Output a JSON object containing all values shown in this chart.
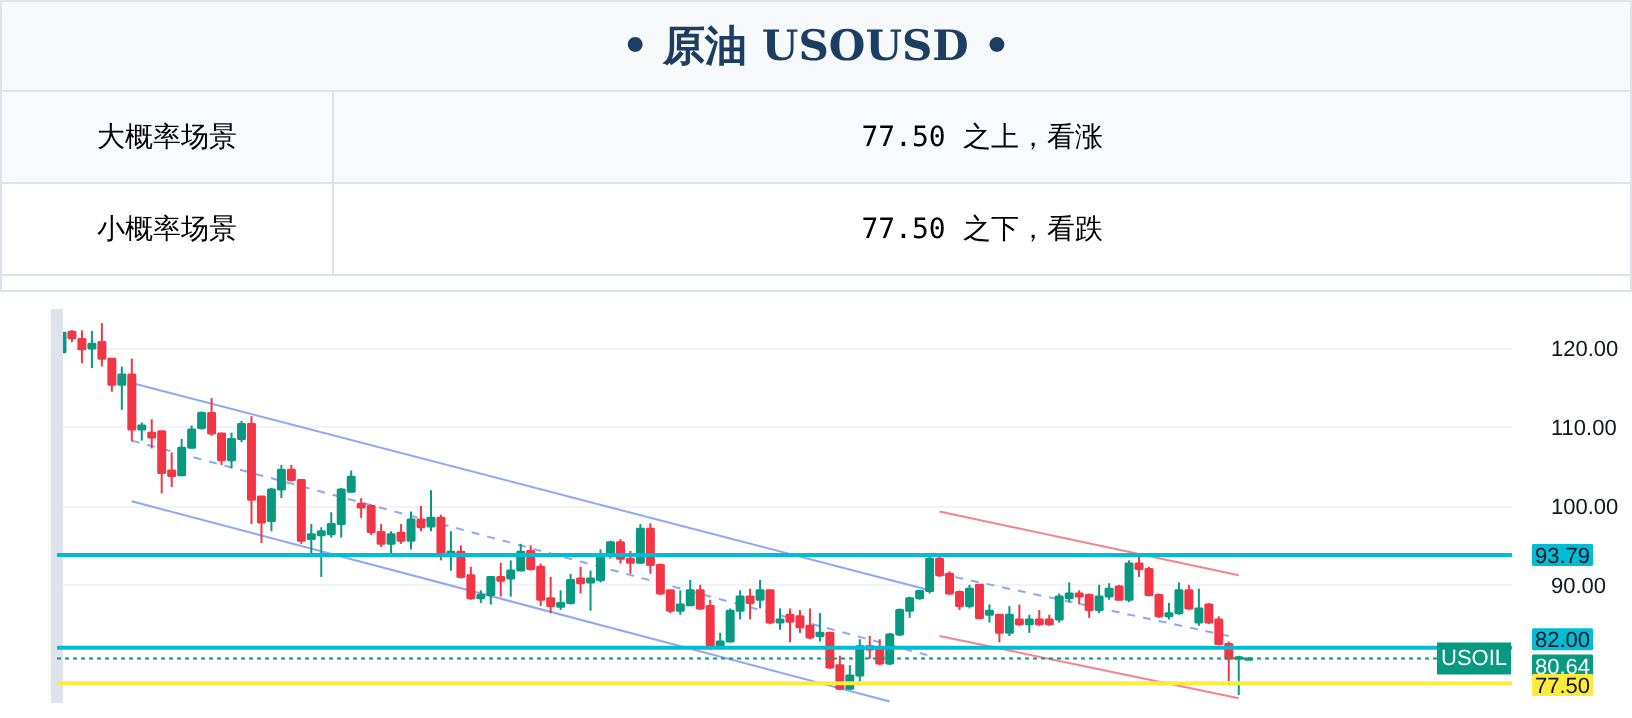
{
  "chart_data": {
    "type": "candlestick",
    "title": "• 原油  USOUSD •",
    "annotations": [
      "大概率场景",
      "77.50 之上，看涨",
      "小概率场景",
      "77.50 之下，看跌",
      {
        "text": "USOIL",
        "y": 80.64
      }
    ],
    "categories": [
      null,
      null,
      null,
      null,
      null,
      null,
      null,
      null,
      null,
      null,
      null,
      null,
      null,
      null,
      null,
      null,
      null,
      null,
      null,
      null,
      null,
      null,
      null,
      null,
      null,
      null,
      null,
      null,
      null,
      null,
      null,
      null,
      null,
      null,
      null,
      null,
      null,
      null,
      null,
      null,
      null,
      null,
      null,
      null,
      null,
      null,
      null,
      null,
      null,
      null,
      null,
      null,
      null,
      null,
      null,
      null,
      null,
      null,
      null,
      null,
      null,
      null,
      null,
      null,
      null,
      null,
      null,
      null,
      null,
      null,
      null,
      null,
      null,
      null,
      null,
      null,
      null,
      null,
      null,
      null,
      null,
      null,
      null,
      null,
      null,
      null,
      null,
      null,
      null,
      null,
      null,
      null,
      null,
      null,
      null,
      null,
      null,
      null,
      null,
      null,
      null,
      null,
      null,
      null,
      null,
      null,
      null,
      null,
      null,
      null,
      null,
      null,
      null,
      null,
      null,
      null,
      null,
      null,
      null,
      null,
      null,
      null,
      null,
      null,
      null,
      null,
      null,
      null,
      null,
      null,
      null,
      null,
      null,
      null,
      null,
      null,
      null,
      null,
      null,
      null,
      null,
      null,
      null,
      null,
      null,
      null
    ],
    "ohlc": [
      [
        119.5,
        122.7,
        119.3,
        122
      ],
      [
        122.1,
        122.3,
        120.8,
        121.3
      ],
      [
        121.2,
        122.3,
        118.1,
        119.9
      ],
      [
        120,
        122.2,
        117.5,
        120.6
      ],
      [
        120.8,
        123.2,
        117.7,
        118.7
      ],
      [
        118.7,
        118.7,
        114.5,
        115.4
      ],
      [
        115.4,
        117.7,
        112.2,
        116.7
      ],
      [
        116.7,
        118.7,
        108.2,
        109.7
      ],
      [
        109.7,
        110.6,
        108.3,
        110.2
      ],
      [
        109.3,
        111,
        107.3,
        108.7
      ],
      [
        109.5,
        109.5,
        101.6,
        104.2
      ],
      [
        104.5,
        106.8,
        102.4,
        103.8
      ],
      [
        103.9,
        108.5,
        103.9,
        107.4
      ],
      [
        107.4,
        110.2,
        107.3,
        109.7
      ],
      [
        109.9,
        112,
        109.7,
        111.8
      ],
      [
        111.8,
        113.7,
        108.9,
        109.2
      ],
      [
        109.2,
        109.3,
        105.2,
        105.8
      ],
      [
        105.8,
        109.3,
        104.8,
        108.5
      ],
      [
        108.5,
        110.8,
        108.1,
        110.4
      ],
      [
        110.4,
        111.4,
        97.7,
        100.8
      ],
      [
        101.2,
        101.2,
        95.3,
        97.9
      ],
      [
        98.1,
        102.3,
        96.8,
        102.1
      ],
      [
        102.1,
        105.2,
        101,
        104.6
      ],
      [
        104.6,
        105.2,
        103.1,
        103.3
      ],
      [
        103.3,
        103.3,
        95.2,
        95.6
      ],
      [
        95.8,
        97.7,
        93.9,
        96.4
      ],
      [
        96.3,
        97.3,
        91,
        96.8
      ],
      [
        96.4,
        99.2,
        96,
        97.7
      ],
      [
        97.7,
        102.3,
        96,
        102.1
      ],
      [
        101.8,
        104.5,
        101.7,
        103.7
      ],
      [
        100.3,
        101,
        98.5,
        99.8
      ],
      [
        100,
        100.2,
        96.3,
        96.7
      ],
      [
        96.7,
        97.7,
        94.8,
        95.2
      ],
      [
        95.2,
        96.8,
        93.5,
        96.4
      ],
      [
        96.6,
        97.7,
        95.2,
        95.6
      ],
      [
        95.6,
        99.3,
        94.5,
        98.3
      ],
      [
        98.3,
        100,
        96.8,
        97.3
      ],
      [
        97.4,
        102,
        96.8,
        98.5
      ],
      [
        98.5,
        98.9,
        93.1,
        93.9
      ],
      [
        93.8,
        96.8,
        91.8,
        94.2
      ],
      [
        94.2,
        95,
        90.8,
        91
      ],
      [
        91.2,
        92.3,
        88.1,
        88.3
      ],
      [
        88.3,
        89.3,
        87.7,
        88.7
      ],
      [
        88.7,
        91,
        87.5,
        91
      ],
      [
        91,
        92.8,
        88.5,
        90.5
      ],
      [
        90.8,
        93.1,
        88.5,
        91.8
      ],
      [
        91.8,
        95.2,
        91.7,
        94.2
      ],
      [
        94.3,
        95,
        91.8,
        92
      ],
      [
        92.3,
        92.7,
        87.3,
        88.1
      ],
      [
        88.3,
        91,
        86.4,
        87.3
      ],
      [
        87.2,
        89.3,
        86.8,
        87.7
      ],
      [
        87.7,
        91.4,
        87.5,
        90.6
      ],
      [
        90.8,
        92.3,
        88.9,
        90.2
      ],
      [
        90.3,
        91.8,
        86.7,
        90.8
      ],
      [
        90.6,
        94.5,
        90.3,
        93.9
      ],
      [
        93.8,
        95.6,
        93.3,
        95.4
      ],
      [
        95.4,
        95.8,
        92.7,
        93.3
      ],
      [
        93.3,
        94.3,
        91.4,
        92.8
      ],
      [
        92.8,
        97.7,
        92.7,
        97.1
      ],
      [
        97.1,
        97.8,
        91.4,
        92.5
      ],
      [
        92.5,
        92.7,
        88.7,
        88.9
      ],
      [
        89.3,
        89.3,
        86.4,
        86.7
      ],
      [
        86.7,
        89.3,
        86.2,
        87.5
      ],
      [
        87.4,
        90.6,
        87.3,
        89.3
      ],
      [
        89.3,
        90,
        86.8,
        87
      ],
      [
        87.3,
        88.1,
        81.8,
        82.1
      ],
      [
        82.1,
        83.9,
        81.8,
        82.8
      ],
      [
        82.8,
        87,
        82.7,
        86.7
      ],
      [
        86.7,
        89.3,
        85.6,
        88.5
      ],
      [
        88.5,
        89.5,
        85.6,
        87.7
      ],
      [
        88.1,
        90.6,
        87,
        89.3
      ],
      [
        89.3,
        89.3,
        85,
        85.2
      ],
      [
        85.2,
        87,
        84.3,
        85.6
      ],
      [
        86.2,
        87,
        82.7,
        85.3
      ],
      [
        86,
        86.8,
        83.9,
        84.6
      ],
      [
        84.8,
        87,
        83.1,
        83.3
      ],
      [
        83.5,
        86.4,
        82.8,
        83.9
      ],
      [
        83.9,
        83.9,
        79.3,
        79.5
      ],
      [
        79.8,
        81,
        76.7,
        76.8
      ],
      [
        76.8,
        79.8,
        76.7,
        78.5
      ],
      [
        78.5,
        83.1,
        77.3,
        82.2
      ],
      [
        82.2,
        83.5,
        80.6,
        81.8
      ],
      [
        82,
        83.1,
        79.8,
        80
      ],
      [
        80,
        83.9,
        79.8,
        83.7
      ],
      [
        83.7,
        87,
        83.5,
        86.8
      ],
      [
        86.7,
        88.5,
        85.8,
        88.3
      ],
      [
        88.3,
        89.3,
        88.1,
        89.2
      ],
      [
        89.2,
        93.9,
        88.9,
        93.3
      ],
      [
        93.3,
        93.9,
        91,
        91.2
      ],
      [
        91.4,
        91.7,
        88.7,
        88.9
      ],
      [
        89.1,
        89.3,
        86.8,
        87.3
      ],
      [
        87.3,
        90,
        87,
        89.5
      ],
      [
        90,
        90,
        85.6,
        85.8
      ],
      [
        86.2,
        87.5,
        85.2,
        86.7
      ],
      [
        86.2,
        86.2,
        82.7,
        83.9
      ],
      [
        83.9,
        87.3,
        83.5,
        86.2
      ],
      [
        85.6,
        87.5,
        84.8,
        85
      ],
      [
        85,
        86.2,
        83.9,
        85.6
      ],
      [
        85.6,
        86.8,
        84.8,
        85
      ],
      [
        85.6,
        86.2,
        84.8,
        85
      ],
      [
        85.6,
        88.9,
        85.2,
        88.5
      ],
      [
        88.3,
        90.3,
        87.8,
        88.9
      ],
      [
        88.9,
        89.3,
        87.5,
        88.5
      ],
      [
        88.7,
        88.9,
        85.8,
        86.8
      ],
      [
        86.8,
        90,
        86.4,
        88.5
      ],
      [
        88.5,
        90.2,
        88.1,
        89.5
      ],
      [
        89.8,
        90,
        88.1,
        88.1
      ],
      [
        88.1,
        93.1,
        87.8,
        92.7
      ],
      [
        92.7,
        93.9,
        91,
        92
      ],
      [
        92,
        92.3,
        88.5,
        88.7
      ],
      [
        88.7,
        88.9,
        85.8,
        86
      ],
      [
        86,
        87.7,
        85.6,
        86.4
      ],
      [
        86.4,
        90.3,
        86.2,
        89.3
      ],
      [
        89.3,
        90,
        86.8,
        87
      ],
      [
        85.2,
        89.5,
        84.8,
        87
      ],
      [
        87.5,
        87.7,
        85,
        85.2
      ],
      [
        85.6,
        86,
        82.3,
        82.5
      ],
      [
        82.5,
        82.8,
        77.8,
        80.6
      ],
      [
        80.6,
        81,
        76,
        80.8
      ],
      [
        80.5,
        80.8,
        80.5,
        80.64
      ],
      null,
      null,
      null,
      null,
      null,
      null,
      null,
      null,
      null,
      null,
      null,
      null,
      null,
      null,
      null,
      null,
      null,
      null,
      null,
      null,
      null,
      null,
      null,
      null,
      null,
      null
    ],
    "series": [
      {
        "type": "line",
        "color": "#8fa8f5",
        "line_style": "solid",
        "values": [
          null,
          null,
          null,
          null,
          null,
          null,
          null,
          115.6,
          null,
          null,
          null,
          null,
          null,
          null,
          null,
          null,
          null,
          null,
          null,
          null,
          null,
          null,
          null,
          null,
          null,
          null,
          null,
          null,
          null,
          null,
          null,
          null,
          null,
          null,
          null,
          null,
          null,
          null,
          null,
          null,
          null,
          null,
          null,
          null,
          null,
          null,
          null,
          null,
          null,
          null,
          null,
          null,
          null,
          null,
          null,
          null,
          null,
          null,
          null,
          null,
          null,
          null,
          null,
          null,
          null,
          null,
          null,
          null,
          null,
          null,
          null,
          null,
          null,
          null,
          null,
          null,
          null,
          null,
          null,
          null,
          null,
          null,
          null,
          null,
          null,
          null,
          null,
          89.3,
          null,
          null,
          null,
          null,
          null,
          null,
          null,
          null,
          null,
          null,
          null,
          null,
          null,
          null,
          null,
          null,
          null,
          null,
          null,
          null,
          null,
          null,
          null,
          null,
          null,
          null,
          null,
          null,
          null,
          null,
          null,
          null,
          null,
          null,
          null,
          null,
          null,
          null,
          null,
          null,
          null,
          null,
          null,
          null,
          null,
          null,
          null,
          null,
          null,
          null,
          null,
          null,
          null,
          null,
          null,
          null,
          null,
          null
        ]
      },
      {
        "type": "line",
        "color": "#8fa8f5",
        "line_style": "dashed",
        "values": [
          null,
          null,
          null,
          null,
          null,
          null,
          null,
          108.3,
          null,
          null,
          null,
          null,
          null,
          null,
          null,
          null,
          null,
          null,
          null,
          null,
          null,
          null,
          null,
          null,
          null,
          null,
          null,
          null,
          null,
          null,
          null,
          null,
          null,
          null,
          null,
          null,
          null,
          null,
          null,
          null,
          null,
          null,
          null,
          null,
          null,
          null,
          null,
          null,
          null,
          null,
          null,
          null,
          null,
          null,
          null,
          null,
          null,
          null,
          null,
          null,
          null,
          null,
          null,
          null,
          null,
          null,
          null,
          null,
          null,
          null,
          null,
          null,
          null,
          null,
          null,
          null,
          null,
          null,
          null,
          null,
          null,
          null,
          null,
          null,
          null,
          null,
          null,
          81,
          null,
          null,
          null,
          null,
          null,
          null,
          null,
          null,
          null,
          null,
          null,
          null,
          null,
          null,
          null,
          null,
          null,
          null,
          null,
          null,
          null,
          null,
          null,
          null,
          null,
          null,
          null,
          null,
          null,
          null,
          null,
          null,
          null,
          null,
          null,
          null,
          null,
          null,
          null,
          null,
          null,
          null,
          null,
          null,
          null,
          null,
          null,
          null,
          null,
          null,
          null,
          null,
          null,
          null,
          null,
          null,
          null,
          null
        ]
      },
      {
        "type": "line",
        "color": "#8fa8f5",
        "line_style": "solid",
        "values": [
          null,
          null,
          null,
          null,
          null,
          null,
          null,
          100.6,
          null,
          null,
          null,
          null,
          null,
          null,
          null,
          null,
          null,
          null,
          null,
          null,
          null,
          null,
          null,
          null,
          null,
          null,
          null,
          null,
          null,
          null,
          null,
          null,
          null,
          null,
          null,
          null,
          null,
          null,
          null,
          null,
          null,
          null,
          null,
          null,
          null,
          null,
          null,
          null,
          null,
          null,
          null,
          null,
          null,
          null,
          null,
          null,
          null,
          null,
          null,
          null,
          null,
          null,
          null,
          null,
          null,
          null,
          null,
          null,
          null,
          null,
          null,
          null,
          null,
          null,
          null,
          null,
          null,
          null,
          null,
          null,
          null,
          null,
          null,
          75.2,
          null,
          null,
          null,
          null,
          null,
          null,
          null,
          null,
          null,
          null,
          null,
          null,
          null,
          null,
          null,
          null,
          null,
          null,
          null,
          null,
          null,
          null,
          null,
          null,
          null,
          null,
          null,
          null,
          null,
          null,
          null,
          null,
          null,
          null,
          null,
          null,
          null,
          null,
          null,
          null,
          null,
          null,
          null,
          null,
          null,
          null,
          null,
          null,
          null,
          null,
          null,
          null,
          null,
          null,
          null,
          null,
          null,
          null,
          null,
          null,
          null,
          null
        ]
      },
      {
        "type": "line",
        "color": "#f4838e",
        "line_style": "solid",
        "values": [
          null,
          null,
          null,
          null,
          null,
          null,
          null,
          null,
          null,
          null,
          null,
          null,
          null,
          null,
          null,
          null,
          null,
          null,
          null,
          null,
          null,
          null,
          null,
          null,
          null,
          null,
          null,
          null,
          null,
          null,
          null,
          null,
          null,
          null,
          null,
          null,
          null,
          null,
          null,
          null,
          null,
          null,
          null,
          null,
          null,
          null,
          null,
          null,
          null,
          null,
          null,
          null,
          null,
          null,
          null,
          null,
          null,
          null,
          null,
          null,
          null,
          null,
          null,
          null,
          null,
          null,
          null,
          null,
          null,
          null,
          null,
          null,
          null,
          null,
          null,
          null,
          null,
          null,
          null,
          null,
          null,
          null,
          null,
          null,
          null,
          null,
          null,
          null,
          99.3,
          null,
          null,
          null,
          null,
          null,
          null,
          null,
          null,
          null,
          null,
          null,
          null,
          null,
          null,
          null,
          null,
          null,
          null,
          null,
          null,
          null,
          null,
          null,
          null,
          null,
          null,
          null,
          null,
          null,
          91.2,
          null,
          null,
          null,
          null,
          null,
          null,
          null,
          null,
          null,
          null,
          null,
          null,
          null,
          null,
          null,
          null,
          null,
          null,
          null,
          null,
          null,
          null,
          null,
          null,
          null,
          null,
          null
        ]
      },
      {
        "type": "line",
        "color": "#8fa8f5",
        "line_style": "dashed",
        "values": [
          null,
          null,
          null,
          null,
          null,
          null,
          null,
          null,
          null,
          null,
          null,
          null,
          null,
          null,
          null,
          null,
          null,
          null,
          null,
          null,
          null,
          null,
          null,
          null,
          null,
          null,
          null,
          null,
          null,
          null,
          null,
          null,
          null,
          null,
          null,
          null,
          null,
          null,
          null,
          null,
          null,
          null,
          null,
          null,
          null,
          null,
          null,
          null,
          null,
          null,
          null,
          null,
          null,
          null,
          null,
          null,
          null,
          null,
          null,
          null,
          null,
          null,
          null,
          null,
          null,
          null,
          null,
          null,
          null,
          null,
          null,
          null,
          null,
          null,
          null,
          null,
          null,
          null,
          null,
          null,
          null,
          null,
          null,
          null,
          null,
          null,
          null,
          null,
          91.4,
          null,
          null,
          null,
          null,
          null,
          null,
          null,
          null,
          null,
          null,
          null,
          null,
          null,
          null,
          null,
          null,
          null,
          null,
          null,
          null,
          null,
          null,
          null,
          null,
          null,
          null,
          null,
          null,
          83.5,
          null,
          null,
          null,
          null,
          null,
          null,
          null,
          null,
          null,
          null,
          null,
          null,
          null,
          null,
          null,
          null,
          null,
          null,
          null,
          null,
          null,
          null,
          null,
          null,
          null,
          null,
          null,
          null
        ]
      },
      {
        "type": "line",
        "color": "#f4838e",
        "line_style": "solid",
        "values": [
          null,
          null,
          null,
          null,
          null,
          null,
          null,
          null,
          null,
          null,
          null,
          null,
          null,
          null,
          null,
          null,
          null,
          null,
          null,
          null,
          null,
          null,
          null,
          null,
          null,
          null,
          null,
          null,
          null,
          null,
          null,
          null,
          null,
          null,
          null,
          null,
          null,
          null,
          null,
          null,
          null,
          null,
          null,
          null,
          null,
          null,
          null,
          null,
          null,
          null,
          null,
          null,
          null,
          null,
          null,
          null,
          null,
          null,
          null,
          null,
          null,
          null,
          null,
          null,
          null,
          null,
          null,
          null,
          null,
          null,
          null,
          null,
          null,
          null,
          null,
          null,
          null,
          null,
          null,
          null,
          null,
          null,
          null,
          null,
          null,
          null,
          null,
          null,
          83.5,
          null,
          null,
          null,
          null,
          null,
          null,
          null,
          null,
          null,
          null,
          null,
          null,
          null,
          null,
          null,
          null,
          null,
          null,
          null,
          null,
          null,
          null,
          null,
          null,
          null,
          null,
          null,
          null,
          null,
          75.6,
          null,
          null,
          null,
          null,
          null,
          null,
          null,
          null,
          null,
          null,
          null,
          null,
          null,
          null,
          null,
          null,
          null,
          null,
          null,
          null,
          null,
          null,
          null,
          null,
          null,
          null,
          null
        ]
      }
    ],
    "ylim": [
      75,
      125
    ],
    "yticks": [
      {
        "value": 90,
        "label": "90.00"
      },
      {
        "value": 100,
        "label": "100.00"
      },
      {
        "value": 110,
        "label": "110.00"
      },
      {
        "value": 120,
        "label": "120.00"
      }
    ],
    "grid": "y",
    "ref_lines": [
      {
        "axis": "y",
        "value": 93.79,
        "label": "93.79",
        "color": "#00bcd4",
        "line_style": "solid"
      },
      {
        "axis": "y",
        "value": 82.0,
        "label": "82.00",
        "color": "#00bcd4",
        "line_style": "solid"
      },
      {
        "axis": "y",
        "value": 80.64,
        "label": "80.64",
        "color": "#089981",
        "line_style": "dotted"
      },
      {
        "axis": "y",
        "value": 77.5,
        "label": "77.50",
        "color": "#ffeb3b",
        "line_style": "solid"
      }
    ]
  }
}
